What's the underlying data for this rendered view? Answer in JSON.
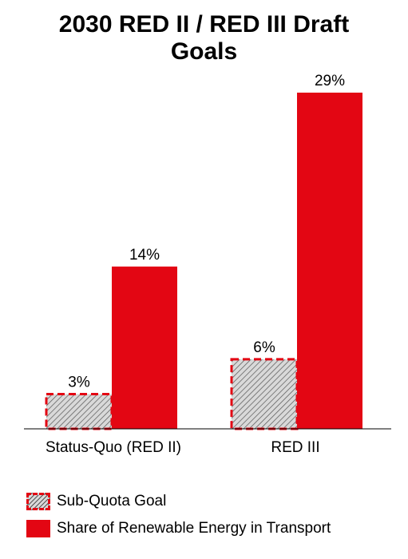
{
  "chart_data": {
    "type": "bar",
    "title": "2030 RED II / RED III Draft Goals",
    "title_lines": [
      "2030 RED II / RED III Draft",
      "Goals"
    ],
    "categories": [
      "Status-Quo (RED II)",
      "RED III"
    ],
    "series": [
      {
        "name": "Sub-Quota Goal",
        "values": [
          3,
          6
        ],
        "labels": [
          "3%",
          "6%"
        ],
        "color": "#e30613",
        "style": "hatched-dashed"
      },
      {
        "name": "Share of Renewable Energy in Transport",
        "values": [
          14,
          29
        ],
        "labels": [
          "14%",
          "29%"
        ],
        "color": "#e30613",
        "style": "solid"
      }
    ],
    "ylim": [
      0,
      29
    ],
    "grid": false,
    "legend": "bottom-left"
  }
}
